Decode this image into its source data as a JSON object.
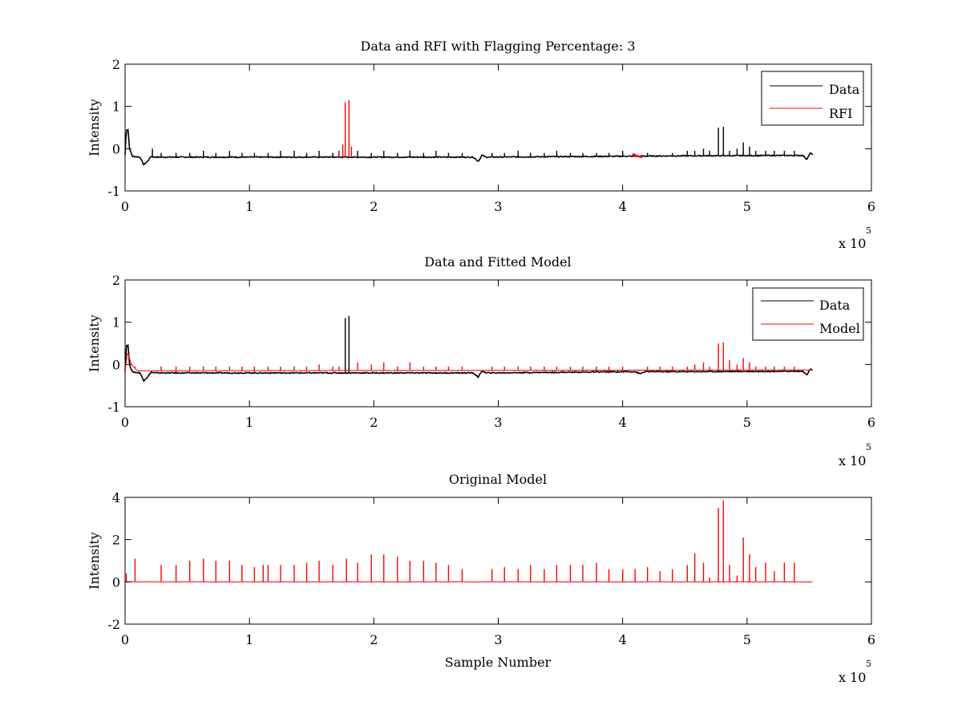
{
  "figure": {
    "background": "#ffffff"
  },
  "chart_data": [
    {
      "type": "line",
      "title": "Data and RFI with Flagging Percentage: 3",
      "ylabel": "Intensity",
      "xlabel": "",
      "xlim": [
        0,
        600000
      ],
      "ylim": [
        -1,
        2
      ],
      "xticks": [
        "0",
        "1",
        "2",
        "3",
        "4",
        "5",
        "6"
      ],
      "yticks": [
        "-1",
        "0",
        "1",
        "2"
      ],
      "x_exponent": "x 10",
      "x_exponent_power": "5",
      "grid": false,
      "legend": "top-right",
      "series": [
        {
          "name": "Data",
          "color": "#000000",
          "baseline": [
            [
              0,
              -0.15
            ],
            [
              1000,
              0.45
            ],
            [
              2500,
              0.45
            ],
            [
              3500,
              0.0
            ],
            [
              6000,
              -0.18
            ],
            [
              12000,
              -0.2
            ],
            [
              15000,
              -0.38
            ],
            [
              18000,
              -0.3
            ],
            [
              21000,
              -0.18
            ],
            [
              23000,
              -0.2
            ],
            [
              280000,
              -0.2
            ],
            [
              284000,
              -0.3
            ],
            [
              287000,
              -0.15
            ],
            [
              290000,
              -0.2
            ],
            [
              450000,
              -0.17
            ],
            [
              545000,
              -0.16
            ],
            [
              548000,
              -0.25
            ],
            [
              551000,
              -0.1
            ],
            [
              553000,
              -0.15
            ]
          ],
          "spikes": [
            [
              22000,
              0.0
            ],
            [
              29000,
              -0.1
            ],
            [
              41000,
              -0.1
            ],
            [
              52000,
              -0.1
            ],
            [
              63000,
              -0.05
            ],
            [
              73000,
              -0.1
            ],
            [
              84000,
              -0.05
            ],
            [
              94000,
              -0.1
            ],
            [
              104000,
              -0.1
            ],
            [
              115000,
              -0.1
            ],
            [
              125000,
              -0.05
            ],
            [
              136000,
              -0.05
            ],
            [
              146000,
              -0.1
            ],
            [
              156000,
              -0.05
            ],
            [
              167000,
              -0.1
            ],
            [
              172000,
              -0.05
            ],
            [
              187000,
              -0.05
            ],
            [
              198000,
              -0.1
            ],
            [
              208000,
              -0.05
            ],
            [
              219000,
              -0.1
            ],
            [
              229000,
              -0.05
            ],
            [
              240000,
              -0.1
            ],
            [
              250000,
              -0.05
            ],
            [
              260000,
              -0.1
            ],
            [
              271000,
              -0.1
            ],
            [
              295000,
              -0.1
            ],
            [
              305000,
              -0.1
            ],
            [
              316000,
              -0.05
            ],
            [
              326000,
              -0.1
            ],
            [
              337000,
              -0.1
            ],
            [
              347000,
              -0.05
            ],
            [
              358000,
              -0.1
            ],
            [
              368000,
              -0.1
            ],
            [
              379000,
              -0.1
            ],
            [
              389000,
              -0.1
            ],
            [
              400000,
              -0.05
            ],
            [
              420000,
              -0.1
            ],
            [
              440000,
              -0.1
            ],
            [
              452000,
              -0.05
            ],
            [
              458000,
              -0.05
            ],
            [
              465000,
              0.0
            ],
            [
              470000,
              -0.05
            ],
            [
              477000,
              0.5
            ],
            [
              481000,
              0.52
            ],
            [
              486000,
              -0.05
            ],
            [
              492000,
              0.0
            ],
            [
              497000,
              0.15
            ],
            [
              502000,
              0.05
            ],
            [
              507000,
              -0.05
            ],
            [
              515000,
              -0.05
            ],
            [
              522000,
              -0.05
            ],
            [
              530000,
              -0.05
            ],
            [
              538000,
              -0.05
            ]
          ]
        },
        {
          "name": "RFI",
          "color": "#ff0000",
          "spikes": [
            [
              172000,
              -0.05
            ],
            [
              175000,
              0.1
            ],
            [
              177000,
              1.1
            ],
            [
              180000,
              1.15
            ],
            [
              182000,
              0.05
            ]
          ],
          "segment": [
            [
              408000,
              -0.12
            ],
            [
              412000,
              -0.18
            ],
            [
              416000,
              -0.2
            ]
          ]
        }
      ]
    },
    {
      "type": "line",
      "title": "Data and Fitted Model",
      "ylabel": "Intensity",
      "xlabel": "",
      "xlim": [
        0,
        600000
      ],
      "ylim": [
        -1,
        2
      ],
      "xticks": [
        "0",
        "1",
        "2",
        "3",
        "4",
        "5",
        "6"
      ],
      "yticks": [
        "-1",
        "0",
        "1",
        "2"
      ],
      "x_exponent": "x 10",
      "x_exponent_power": "5",
      "grid": false,
      "legend": "top-right",
      "series": [
        {
          "name": "Data",
          "color": "#000000",
          "baseline": [
            [
              0,
              -0.15
            ],
            [
              1000,
              0.45
            ],
            [
              2500,
              0.45
            ],
            [
              3500,
              0.0
            ],
            [
              6000,
              -0.18
            ],
            [
              12000,
              -0.2
            ],
            [
              15000,
              -0.38
            ],
            [
              18000,
              -0.3
            ],
            [
              21000,
              -0.18
            ],
            [
              23000,
              -0.2
            ],
            [
              280000,
              -0.2
            ],
            [
              284000,
              -0.3
            ],
            [
              287000,
              -0.15
            ],
            [
              290000,
              -0.2
            ],
            [
              410000,
              -0.17
            ],
            [
              414000,
              -0.22
            ],
            [
              418000,
              -0.17
            ],
            [
              450000,
              -0.17
            ],
            [
              545000,
              -0.16
            ],
            [
              548000,
              -0.25
            ],
            [
              551000,
              -0.1
            ],
            [
              553000,
              -0.15
            ]
          ],
          "spikes": [
            [
              177000,
              1.1
            ],
            [
              180000,
              1.15
            ]
          ]
        },
        {
          "name": "Model",
          "color": "#ff0000",
          "baseline": [
            [
              0,
              -0.15
            ],
            [
              2000,
              0.3
            ],
            [
              5000,
              0.0
            ],
            [
              10000,
              -0.15
            ],
            [
              550000,
              -0.13
            ],
            [
              553000,
              -0.13
            ]
          ],
          "spikes": [
            [
              8000,
              -0.05
            ],
            [
              29000,
              -0.05
            ],
            [
              41000,
              -0.05
            ],
            [
              52000,
              -0.05
            ],
            [
              63000,
              -0.05
            ],
            [
              73000,
              -0.05
            ],
            [
              84000,
              -0.05
            ],
            [
              94000,
              -0.05
            ],
            [
              104000,
              -0.05
            ],
            [
              115000,
              -0.05
            ],
            [
              125000,
              -0.05
            ],
            [
              136000,
              -0.05
            ],
            [
              146000,
              -0.05
            ],
            [
              156000,
              0.0
            ],
            [
              167000,
              -0.05
            ],
            [
              172000,
              -0.05
            ],
            [
              187000,
              0.05
            ],
            [
              198000,
              0.0
            ],
            [
              208000,
              0.05
            ],
            [
              219000,
              -0.05
            ],
            [
              229000,
              0.05
            ],
            [
              240000,
              -0.05
            ],
            [
              250000,
              -0.05
            ],
            [
              260000,
              -0.05
            ],
            [
              271000,
              -0.05
            ],
            [
              295000,
              -0.05
            ],
            [
              305000,
              -0.05
            ],
            [
              316000,
              -0.05
            ],
            [
              326000,
              -0.05
            ],
            [
              337000,
              -0.05
            ],
            [
              347000,
              -0.05
            ],
            [
              358000,
              -0.05
            ],
            [
              368000,
              -0.05
            ],
            [
              379000,
              -0.05
            ],
            [
              389000,
              -0.05
            ],
            [
              400000,
              -0.05
            ],
            [
              420000,
              -0.05
            ],
            [
              430000,
              -0.05
            ],
            [
              440000,
              -0.05
            ],
            [
              452000,
              -0.05
            ],
            [
              458000,
              0.0
            ],
            [
              465000,
              0.05
            ],
            [
              470000,
              -0.05
            ],
            [
              477000,
              0.5
            ],
            [
              481000,
              0.52
            ],
            [
              486000,
              0.1
            ],
            [
              492000,
              0.0
            ],
            [
              497000,
              0.15
            ],
            [
              502000,
              0.05
            ],
            [
              507000,
              -0.05
            ],
            [
              515000,
              -0.05
            ],
            [
              522000,
              -0.05
            ],
            [
              530000,
              -0.05
            ],
            [
              538000,
              -0.05
            ]
          ]
        }
      ]
    },
    {
      "type": "line",
      "title": "Original Model",
      "ylabel": "Intensity",
      "xlabel": "Sample Number",
      "xlim": [
        0,
        600000
      ],
      "ylim": [
        -2,
        4
      ],
      "xticks": [
        "0",
        "1",
        "2",
        "3",
        "4",
        "5",
        "6"
      ],
      "yticks": [
        "-2",
        "0",
        "2",
        "4"
      ],
      "x_exponent": "x 10",
      "x_exponent_power": "5",
      "grid": false,
      "legend": "none",
      "series": [
        {
          "color": "#ff0000",
          "baseline": [
            [
              0,
              0.0
            ],
            [
              553000,
              0.0
            ]
          ],
          "spikes": [
            [
              1000,
              0.4
            ],
            [
              8000,
              1.1
            ],
            [
              29000,
              0.8
            ],
            [
              41000,
              0.8
            ],
            [
              52000,
              1.0
            ],
            [
              63000,
              1.1
            ],
            [
              73000,
              1.0
            ],
            [
              84000,
              1.0
            ],
            [
              94000,
              0.8
            ],
            [
              104000,
              0.7
            ],
            [
              111000,
              0.8
            ],
            [
              115000,
              0.8
            ],
            [
              125000,
              0.8
            ],
            [
              136000,
              0.8
            ],
            [
              146000,
              0.9
            ],
            [
              156000,
              1.0
            ],
            [
              167000,
              0.8
            ],
            [
              178000,
              1.1
            ],
            [
              187000,
              0.9
            ],
            [
              198000,
              1.3
            ],
            [
              208000,
              1.3
            ],
            [
              219000,
              1.2
            ],
            [
              229000,
              1.0
            ],
            [
              240000,
              1.0
            ],
            [
              250000,
              0.9
            ],
            [
              260000,
              0.8
            ],
            [
              271000,
              0.6
            ],
            [
              295000,
              0.6
            ],
            [
              305000,
              0.7
            ],
            [
              316000,
              0.6
            ],
            [
              326000,
              0.8
            ],
            [
              337000,
              0.6
            ],
            [
              347000,
              0.8
            ],
            [
              358000,
              0.8
            ],
            [
              368000,
              0.8
            ],
            [
              379000,
              0.9
            ],
            [
              389000,
              0.6
            ],
            [
              400000,
              0.6
            ],
            [
              410000,
              0.6
            ],
            [
              420000,
              0.7
            ],
            [
              430000,
              0.5
            ],
            [
              440000,
              0.6
            ],
            [
              452000,
              0.8
            ],
            [
              458000,
              1.35
            ],
            [
              465000,
              0.9
            ],
            [
              470000,
              0.2
            ],
            [
              477000,
              3.5
            ],
            [
              481000,
              3.85
            ],
            [
              486000,
              0.8
            ],
            [
              492000,
              0.3
            ],
            [
              497000,
              2.1
            ],
            [
              502000,
              1.3
            ],
            [
              507000,
              0.7
            ],
            [
              515000,
              0.9
            ],
            [
              522000,
              0.5
            ],
            [
              530000,
              0.9
            ],
            [
              538000,
              0.9
            ]
          ]
        }
      ]
    }
  ]
}
